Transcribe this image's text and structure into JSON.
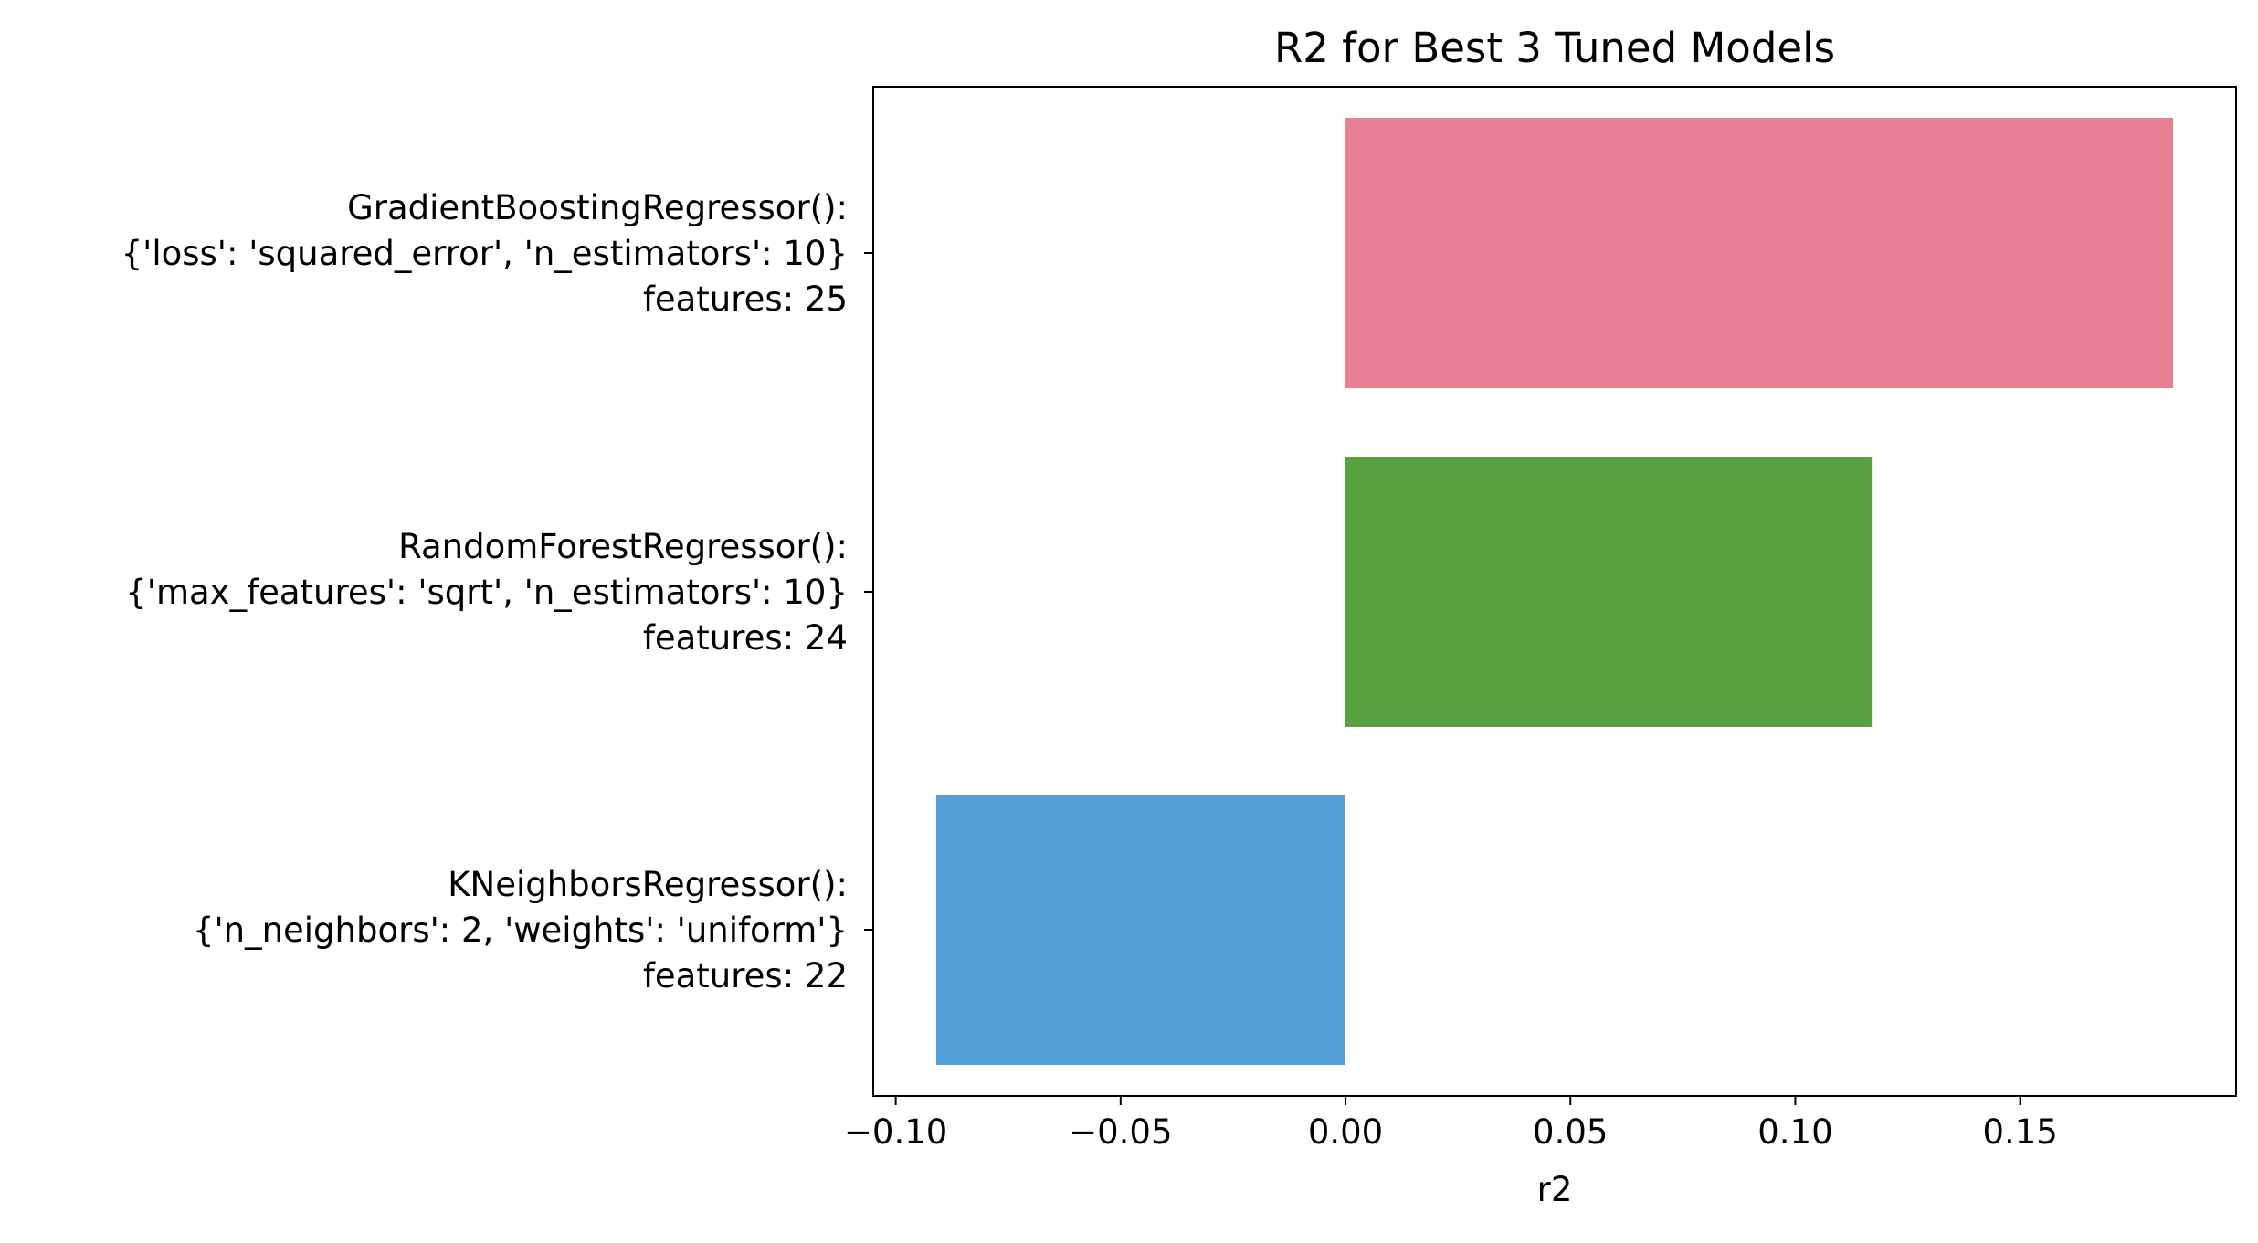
{
  "chart_data": {
    "type": "bar",
    "orientation": "horizontal",
    "title": "R2 for Best 3 Tuned Models",
    "xlabel": "r2",
    "ylabel": "",
    "xlim": [
      -0.105,
      0.198
    ],
    "xticks": [
      -0.1,
      -0.05,
      0.0,
      0.05,
      0.1,
      0.15
    ],
    "xtick_labels": [
      "−0.10",
      "−0.05",
      "0.00",
      "0.05",
      "0.10",
      "0.15"
    ],
    "grid": false,
    "legend": "none",
    "bars": [
      {
        "label_lines": [
          "GradientBoostingRegressor():",
          "{'loss': 'squared_error', 'n_estimators': 10}",
          "features: 25"
        ],
        "value": 0.184,
        "color": "#e67f91"
      },
      {
        "label_lines": [
          "RandomForestRegressor():",
          "{'max_features': 'sqrt', 'n_estimators': 10}",
          "features: 24"
        ],
        "value": 0.117,
        "color": "#5aa241"
      },
      {
        "label_lines": [
          "KNeighborsRegressor():",
          "{'n_neighbors': 2, 'weights': 'uniform'}",
          "features: 22"
        ],
        "value": -0.091,
        "color": "#529fd6"
      }
    ]
  }
}
